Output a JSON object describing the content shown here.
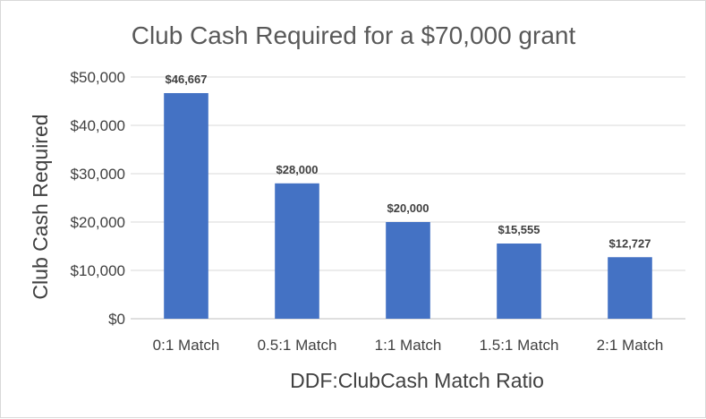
{
  "chart_data": {
    "type": "bar",
    "title": "Club Cash Required for a $70,000 grant",
    "xlabel": "DDF:ClubCash Match Ratio",
    "ylabel": "Club Cash Required",
    "categories": [
      "0:1 Match",
      "0.5:1 Match",
      "1:1 Match",
      "1.5:1 Match",
      "2:1 Match"
    ],
    "values": [
      46667,
      28000,
      20000,
      15555,
      12727
    ],
    "data_labels": [
      "$46,667",
      "$28,000",
      "$20,000",
      "$15,555",
      "$12,727"
    ],
    "ylim": [
      0,
      50000
    ],
    "yticks": [
      0,
      10000,
      20000,
      30000,
      40000,
      50000
    ],
    "ytick_labels": [
      "$0",
      "$10,000",
      "$20,000",
      "$30,000",
      "$40,000",
      "$50,000"
    ],
    "grid": true,
    "legend": "none",
    "bar_color": "#4472C4"
  }
}
